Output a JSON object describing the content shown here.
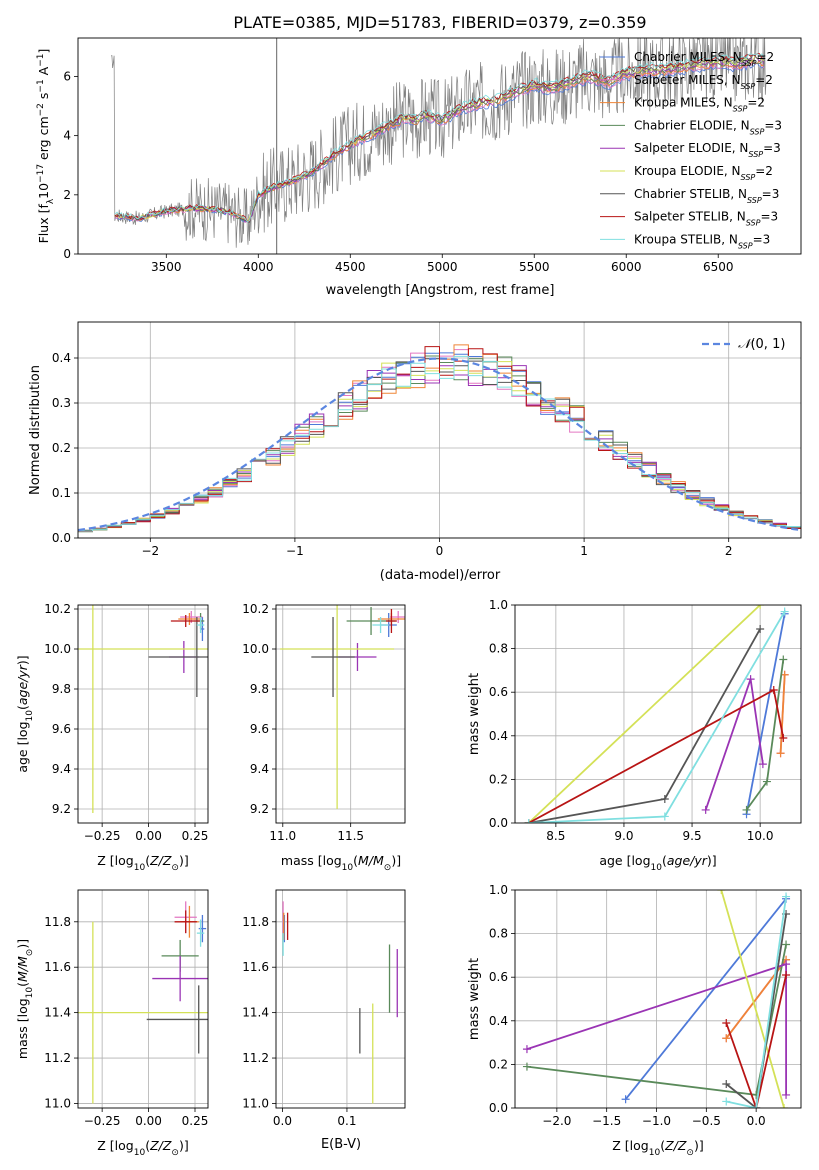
{
  "title": "PLATE=0385, MJD=51783, FIBERID=0379, z=0.359",
  "colors": {
    "chabrier_miles": "#4e79d8",
    "salpeter_miles": "#e377c2",
    "kroupa_miles": "#ef8536",
    "chabrier_elodie": "#5a8a5a",
    "salpeter_elodie": "#9a34b4",
    "kroupa_elodie": "#d4e157",
    "chabrier_stelib": "#555555",
    "salpeter_stelib": "#b81414",
    "kroupa_stelib": "#80dfe0",
    "data": "#7f7f7f",
    "normal": "#5b86e0"
  },
  "chart_data": [
    {
      "id": "spectrum",
      "type": "line",
      "xlabel": "wavelength [Angstrom, rest frame]",
      "ylabel": "Flux [f_λ 10⁻¹⁷ erg cm⁻² s⁻¹ Å⁻¹]",
      "xlim": [
        3020,
        6950
      ],
      "ylim": [
        0,
        7.3
      ],
      "xticks": [
        3500,
        4000,
        4500,
        5000,
        5500,
        6000,
        6500
      ],
      "yticks": [
        0,
        2,
        4,
        6
      ],
      "grid": false,
      "legend_position": "upper-right",
      "legend": [
        "Chabrier MILES, N_SSP=2",
        "Salpeter MILES, N_SSP=2",
        "Kroupa MILES, N_SSP=2",
        "Chabrier ELODIE, N_SSP=3",
        "Salpeter ELODIE, N_SSP=3",
        "Kroupa ELODIE, N_SSP=2",
        "Chabrier STELIB, N_SSP=3",
        "Salpeter STELIB, N_SSP=3",
        "Kroupa STELIB, N_SSP=3"
      ],
      "model_continuum": {
        "x": [
          3220,
          3350,
          3500,
          3650,
          3750,
          3850,
          3950,
          4000,
          4100,
          4200,
          4300,
          4400,
          4500,
          4600,
          4700,
          4800,
          4860,
          4900,
          5000,
          5100,
          5200,
          5300,
          5400,
          5500,
          5600,
          5700,
          5800,
          5900,
          6000,
          6100,
          6200,
          6300,
          6400,
          6500,
          6600,
          6700,
          6750
        ],
        "y": [
          1.3,
          1.2,
          1.45,
          1.55,
          1.5,
          1.4,
          1.1,
          2.0,
          2.3,
          2.5,
          2.8,
          3.3,
          3.7,
          4.0,
          4.3,
          4.6,
          4.5,
          4.7,
          4.5,
          4.9,
          5.1,
          5.2,
          5.5,
          5.7,
          5.6,
          5.8,
          6.0,
          5.8,
          6.1,
          6.2,
          6.2,
          6.3,
          6.4,
          6.5,
          6.4,
          6.6,
          6.5
        ]
      },
      "observed_range": [
        3200,
        6760
      ]
    },
    {
      "id": "residuals",
      "type": "histogram",
      "xlabel": "(data-model)/error",
      "ylabel": "Normed distribution",
      "xlim": [
        -2.5,
        2.5
      ],
      "ylim": [
        0,
        0.48
      ],
      "xticks": [
        -2,
        -1,
        0,
        1,
        2
      ],
      "yticks": [
        0.0,
        0.1,
        0.2,
        0.3,
        0.4
      ],
      "grid": true,
      "legend_position": "upper-right",
      "legend": [
        "𝒩(0, 1)"
      ],
      "bin_width": 0.1
    },
    {
      "id": "age-vs-Z",
      "type": "errorbar",
      "xlabel": "Z [log10(Z/Z⊙)]",
      "ylabel": "age  [log10(age/yr)]",
      "xlim": [
        -0.38,
        0.32
      ],
      "ylim": [
        9.13,
        10.22
      ],
      "xticks": [
        -0.25,
        0.0,
        0.25
      ],
      "xticklabels": [
        "−0.25",
        "0.00",
        "0.25"
      ],
      "yticks": [
        9.2,
        9.4,
        9.6,
        9.8,
        10.0,
        10.2
      ],
      "grid": true,
      "points": [
        {
          "model": "chabrier_miles",
          "x": 0.29,
          "y": 10.1,
          "xerr": 0.01,
          "yerr": 0.06
        },
        {
          "model": "salpeter_miles",
          "x": 0.23,
          "y": 10.16,
          "xerr": 0.06,
          "yerr": 0.03
        },
        {
          "model": "kroupa_miles",
          "x": 0.22,
          "y": 10.15,
          "xerr": 0.06,
          "yerr": 0.03
        },
        {
          "model": "chabrier_elodie",
          "x": 0.28,
          "y": 10.14,
          "xerr": 0.02,
          "yerr": 0.04
        },
        {
          "model": "salpeter_elodie",
          "x": 0.19,
          "y": 9.96,
          "xerr": 0.08,
          "yerr": 0.08
        },
        {
          "model": "kroupa_elodie",
          "x": -0.3,
          "y": 10.0,
          "xerr": 0.62,
          "yerr": 0.82
        },
        {
          "model": "chabrier_stelib",
          "x": 0.26,
          "y": 9.96,
          "xerr": 0.26,
          "yerr": 0.2
        },
        {
          "model": "salpeter_stelib",
          "x": 0.2,
          "y": 10.14,
          "xerr": 0.08,
          "yerr": 0.03
        },
        {
          "model": "kroupa_stelib",
          "x": 0.28,
          "y": 10.12,
          "xerr": 0.02,
          "yerr": 0.04
        }
      ]
    },
    {
      "id": "age-vs-mass",
      "type": "errorbar",
      "xlabel": "mass [log10(M/M⊙)]",
      "ylabel": "",
      "xlim": [
        10.95,
        11.9
      ],
      "ylim": [
        9.13,
        10.22
      ],
      "xticks": [
        11.0,
        11.5
      ],
      "yticks": [
        9.2,
        9.4,
        9.6,
        9.8,
        10.0,
        10.2
      ],
      "grid": true,
      "points": [
        {
          "model": "chabrier_miles",
          "x": 11.78,
          "y": 10.12,
          "xerr": 0.06,
          "yerr": 0.06
        },
        {
          "model": "salpeter_miles",
          "x": 11.85,
          "y": 10.16,
          "xerr": 0.06,
          "yerr": 0.03
        },
        {
          "model": "kroupa_miles",
          "x": 11.8,
          "y": 10.15,
          "xerr": 0.1,
          "yerr": 0.03
        },
        {
          "model": "chabrier_elodie",
          "x": 11.65,
          "y": 10.14,
          "xerr": 0.18,
          "yerr": 0.07
        },
        {
          "model": "salpeter_elodie",
          "x": 11.55,
          "y": 9.96,
          "xerr": 0.14,
          "yerr": 0.07
        },
        {
          "model": "kroupa_elodie",
          "x": 11.4,
          "y": 10.0,
          "xerr": 0.42,
          "yerr": 0.8
        },
        {
          "model": "chabrier_stelib",
          "x": 11.37,
          "y": 9.96,
          "xerr": 0.16,
          "yerr": 0.2
        },
        {
          "model": "salpeter_stelib",
          "x": 11.8,
          "y": 10.14,
          "xerr": 0.04,
          "yerr": 0.06
        },
        {
          "model": "kroupa_stelib",
          "x": 11.72,
          "y": 10.12,
          "xerr": 0.06,
          "yerr": 0.04
        }
      ]
    },
    {
      "id": "mass-weight-vs-age",
      "type": "line",
      "xlabel": "age  [log10(age/yr)]",
      "ylabel": "mass weight",
      "xlim": [
        8.2,
        10.3
      ],
      "ylim": [
        0,
        1.0
      ],
      "xticks": [
        8.5,
        9.0,
        9.5,
        10.0
      ],
      "yticks": [
        0.0,
        0.2,
        0.4,
        0.6,
        0.8,
        1.0
      ],
      "grid": true,
      "series": [
        {
          "model": "chabrier_miles",
          "x": [
            9.9,
            10.18
          ],
          "y": [
            0.04,
            0.96
          ]
        },
        {
          "model": "salpeter_miles",
          "x": [
            10.15,
            10.18
          ],
          "y": [
            0.32,
            0.68
          ]
        },
        {
          "model": "kroupa_miles",
          "x": [
            10.15,
            10.18
          ],
          "y": [
            0.32,
            0.68
          ]
        },
        {
          "model": "chabrier_elodie",
          "x": [
            9.9,
            10.05,
            10.17
          ],
          "y": [
            0.06,
            0.19,
            0.75
          ]
        },
        {
          "model": "salpeter_elodie",
          "x": [
            9.6,
            9.93,
            10.02
          ],
          "y": [
            0.06,
            0.66,
            0.27
          ]
        },
        {
          "model": "kroupa_elodie",
          "x": [
            8.3,
            10.0
          ],
          "y": [
            0.0,
            1.0
          ]
        },
        {
          "model": "chabrier_stelib",
          "x": [
            8.3,
            9.3,
            10.0
          ],
          "y": [
            0.0,
            0.11,
            0.89
          ]
        },
        {
          "model": "salpeter_stelib",
          "x": [
            8.3,
            10.1,
            10.17
          ],
          "y": [
            0.0,
            0.61,
            0.39
          ]
        },
        {
          "model": "kroupa_stelib",
          "x": [
            8.3,
            9.3,
            10.18
          ],
          "y": [
            0.0,
            0.03,
            0.97
          ]
        }
      ]
    },
    {
      "id": "mass-vs-Z",
      "type": "errorbar",
      "xlabel": "Z [log10(Z/Z⊙)]",
      "ylabel": "mass [log10(M/M⊙)]",
      "xlim": [
        -0.38,
        0.32
      ],
      "ylim": [
        10.98,
        11.94
      ],
      "xticks": [
        -0.25,
        0.0,
        0.25
      ],
      "xticklabels": [
        "−0.25",
        "0.00",
        "0.25"
      ],
      "yticks": [
        11.0,
        11.2,
        11.4,
        11.6,
        11.8
      ],
      "grid": true,
      "points": [
        {
          "model": "chabrier_miles",
          "x": 0.29,
          "y": 11.77,
          "xerr": 0.02,
          "yerr": 0.06
        },
        {
          "model": "salpeter_miles",
          "x": 0.2,
          "y": 11.82,
          "xerr": 0.06,
          "yerr": 0.07
        },
        {
          "model": "kroupa_miles",
          "x": 0.22,
          "y": 11.8,
          "xerr": 0.05,
          "yerr": 0.07
        },
        {
          "model": "chabrier_elodie",
          "x": 0.17,
          "y": 11.65,
          "xerr": 0.1,
          "yerr": 0.07
        },
        {
          "model": "salpeter_elodie",
          "x": 0.17,
          "y": 11.55,
          "xerr": 0.15,
          "yerr": 0.1
        },
        {
          "model": "kroupa_elodie",
          "x": -0.3,
          "y": 11.4,
          "xerr": 0.62,
          "yerr": 0.4
        },
        {
          "model": "chabrier_stelib",
          "x": 0.27,
          "y": 11.37,
          "xerr": 0.28,
          "yerr": 0.15
        },
        {
          "model": "salpeter_stelib",
          "x": 0.2,
          "y": 11.8,
          "xerr": 0.06,
          "yerr": 0.05
        },
        {
          "model": "kroupa_stelib",
          "x": 0.28,
          "y": 11.75,
          "xerr": 0.02,
          "yerr": 0.06
        }
      ]
    },
    {
      "id": "mass-vs-ebv",
      "type": "errorbar",
      "xlabel": "E(B-V)",
      "ylabel": "",
      "xlim": [
        -0.01,
        0.19
      ],
      "ylim": [
        10.98,
        11.94
      ],
      "xticks": [
        0.0,
        0.1
      ],
      "yticks": [
        11.0,
        11.2,
        11.4,
        11.6,
        11.8
      ],
      "grid": true,
      "points": [
        {
          "model": "chabrier_miles",
          "x": 0.003,
          "y": 11.77,
          "xerr": 0.0,
          "yerr": 0.06
        },
        {
          "model": "salpeter_miles",
          "x": 0.001,
          "y": 11.82,
          "xerr": 0.0,
          "yerr": 0.07
        },
        {
          "model": "kroupa_miles",
          "x": 0.002,
          "y": 11.78,
          "xerr": 0.0,
          "yerr": 0.06
        },
        {
          "model": "chabrier_elodie",
          "x": 0.166,
          "y": 11.55,
          "xerr": 0.0,
          "yerr": 0.15
        },
        {
          "model": "salpeter_elodie",
          "x": 0.178,
          "y": 11.53,
          "xerr": 0.0,
          "yerr": 0.15
        },
        {
          "model": "kroupa_elodie",
          "x": 0.14,
          "y": 11.22,
          "xerr": 0.0,
          "yerr": 0.22
        },
        {
          "model": "chabrier_stelib",
          "x": 0.12,
          "y": 11.32,
          "xerr": 0.0,
          "yerr": 0.1
        },
        {
          "model": "salpeter_stelib",
          "x": 0.008,
          "y": 11.78,
          "xerr": 0.0,
          "yerr": 0.06
        },
        {
          "model": "kroupa_stelib",
          "x": 0.001,
          "y": 11.7,
          "xerr": 0.0,
          "yerr": 0.05
        }
      ]
    },
    {
      "id": "mass-weight-vs-Z",
      "type": "line",
      "xlabel": "Z [log10(Z/Z⊙)]",
      "ylabel": "mass weight",
      "xlim": [
        -2.42,
        0.45
      ],
      "ylim": [
        0,
        1.0
      ],
      "xticks": [
        -2.0,
        -1.5,
        -1.0,
        -0.5,
        0.0
      ],
      "xticklabels": [
        "−2.0",
        "−1.5",
        "−1.0",
        "−0.5",
        "0.0"
      ],
      "yticks": [
        0.0,
        0.2,
        0.4,
        0.6,
        0.8,
        1.0
      ],
      "grid": true,
      "series": [
        {
          "model": "chabrier_miles",
          "x": [
            -1.31,
            0.3
          ],
          "y": [
            0.04,
            0.96
          ]
        },
        {
          "model": "salpeter_miles",
          "x": [
            -0.3,
            0.3
          ],
          "y": [
            0.32,
            0.68
          ]
        },
        {
          "model": "kroupa_miles",
          "x": [
            -0.3,
            0.3
          ],
          "y": [
            0.32,
            0.68
          ]
        },
        {
          "model": "chabrier_elodie",
          "x": [
            -2.3,
            0.0,
            0.3
          ],
          "y": [
            0.19,
            0.06,
            0.75
          ]
        },
        {
          "model": "salpeter_elodie",
          "x": [
            -2.3,
            0.3,
            0.3
          ],
          "y": [
            0.27,
            0.66,
            0.06
          ]
        },
        {
          "model": "kroupa_elodie",
          "x": [
            -0.35,
            0.28
          ],
          "y": [
            1.0,
            0.0
          ]
        },
        {
          "model": "chabrier_stelib",
          "x": [
            -0.3,
            0.0,
            0.3
          ],
          "y": [
            0.11,
            0.0,
            0.89
          ]
        },
        {
          "model": "salpeter_stelib",
          "x": [
            -0.3,
            0.0,
            0.3
          ],
          "y": [
            0.39,
            0.0,
            0.61
          ]
        },
        {
          "model": "kroupa_stelib",
          "x": [
            -0.3,
            0.0,
            0.3
          ],
          "y": [
            0.03,
            0.0,
            0.97
          ]
        }
      ]
    }
  ]
}
